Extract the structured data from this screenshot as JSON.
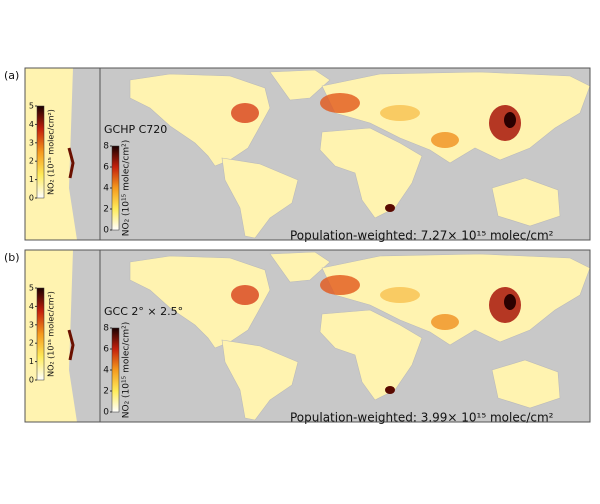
{
  "panels": [
    {
      "label": "(a)",
      "model": "GCHP C720",
      "colorbar": {
        "lim": [
          0,
          8
        ],
        "ticks": [
          0,
          2,
          4,
          6,
          8
        ],
        "label": "NO₂ (10¹⁵ molec/cm²)"
      },
      "inset_colorbar": {
        "lim": [
          0,
          5
        ],
        "ticks": [
          0,
          1,
          2,
          3,
          4,
          5
        ],
        "label": "NO₂ (10¹⁵ molec/cm²)"
      },
      "caption": "Population-weighted: 7.27× 10¹⁵ molec/cm²"
    },
    {
      "label": "(b)",
      "model": "GCC 2° × 2.5°",
      "colorbar": {
        "lim": [
          0,
          8
        ],
        "ticks": [
          0,
          2,
          4,
          6,
          8
        ],
        "label": "NO₂ (10¹⁵ molec/cm²)"
      },
      "inset_colorbar": {
        "lim": [
          0,
          5
        ],
        "ticks": [
          0,
          1,
          2,
          3,
          4,
          5
        ],
        "label": "NO₂ (10¹⁵ molec/cm²)"
      },
      "caption": "Population-weighted: 3.99× 10¹⁵ molec/cm²"
    }
  ]
}
